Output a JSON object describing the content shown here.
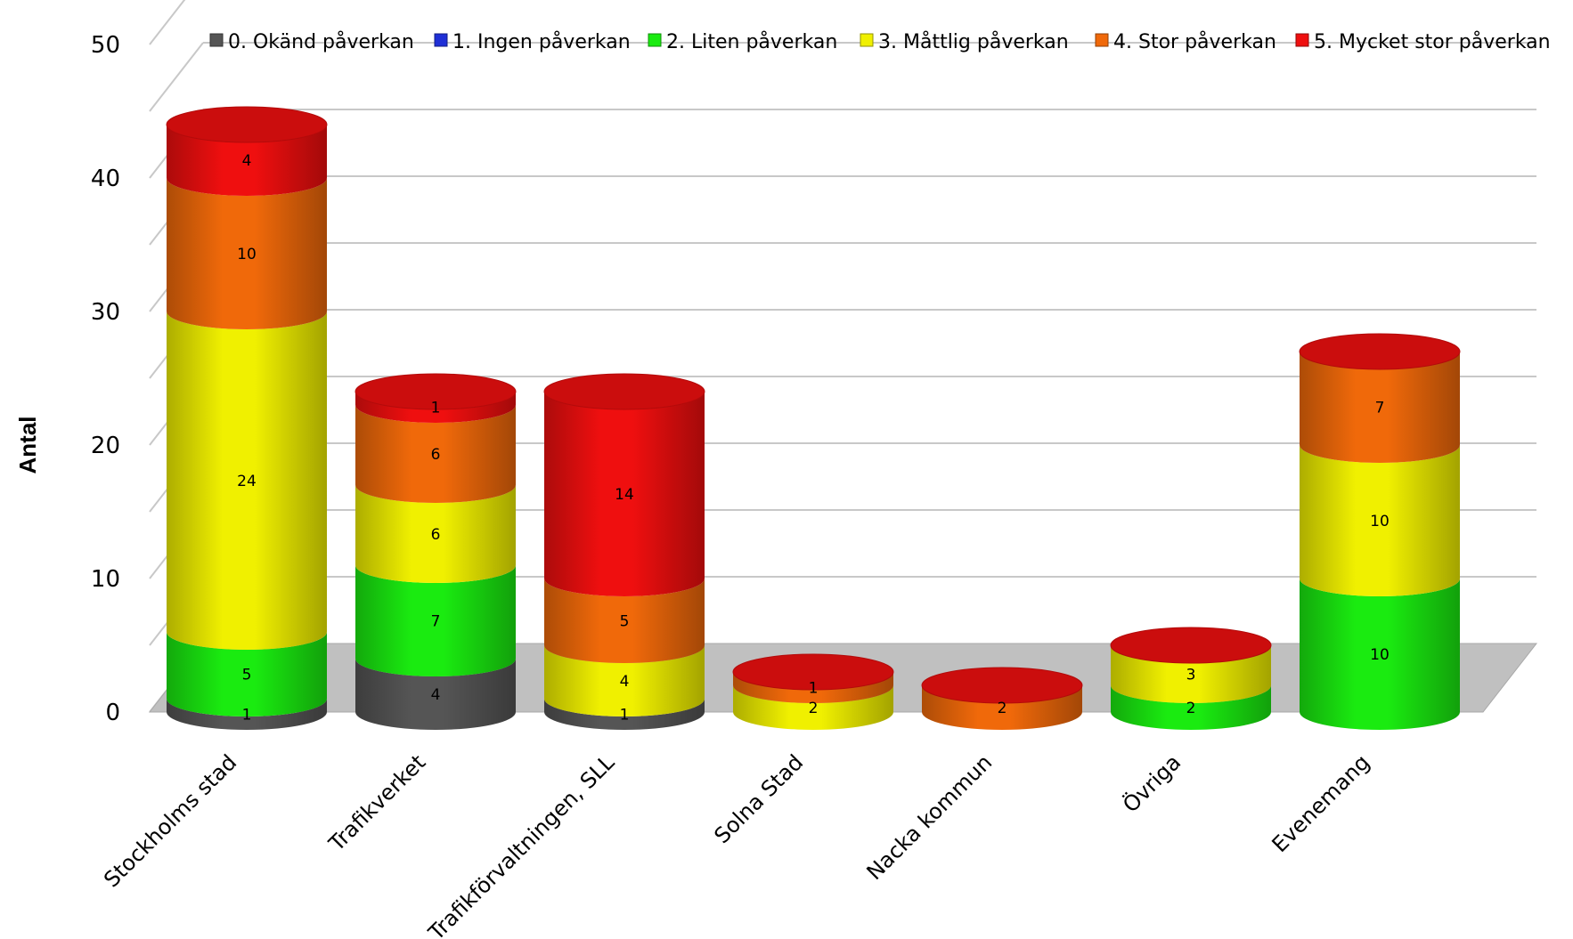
{
  "chart_data": {
    "type": "bar",
    "style": "3d-stacked-cylinder",
    "ylabel": "Antal",
    "ylim": [
      0,
      50
    ],
    "yticks": [
      "0",
      "10",
      "20",
      "30",
      "40",
      "50"
    ],
    "grid": true,
    "legend_position": "top",
    "categories": [
      "Stockholms stad",
      "Trafikverket",
      "Trafikförvaltningen, SLL",
      "Solna Stad",
      "Nacka kommun",
      "Övriga",
      "Evenemang"
    ],
    "series": [
      {
        "name": "0. Okänd påverkan",
        "color": "#555555",
        "values": [
          1,
          4,
          1,
          0,
          0,
          0,
          0
        ]
      },
      {
        "name": "1. Ingen påverkan",
        "color": "#1f2fd6",
        "values": [
          0,
          0,
          0,
          0,
          0,
          0,
          0
        ]
      },
      {
        "name": "2. Liten påverkan",
        "color": "#1aeb10",
        "values": [
          5,
          7,
          0,
          0,
          0,
          2,
          10
        ]
      },
      {
        "name": "3. Måttlig påverkan",
        "color": "#f0f000",
        "values": [
          24,
          6,
          4,
          2,
          0,
          3,
          10
        ]
      },
      {
        "name": "4. Stor påverkan",
        "color": "#f0690a",
        "values": [
          10,
          6,
          5,
          1,
          2,
          0,
          7
        ]
      },
      {
        "name": "5. Mycket stor påverkan",
        "color": "#ef0f0f",
        "values": [
          4,
          1,
          14,
          0,
          0,
          0,
          0
        ]
      }
    ]
  }
}
